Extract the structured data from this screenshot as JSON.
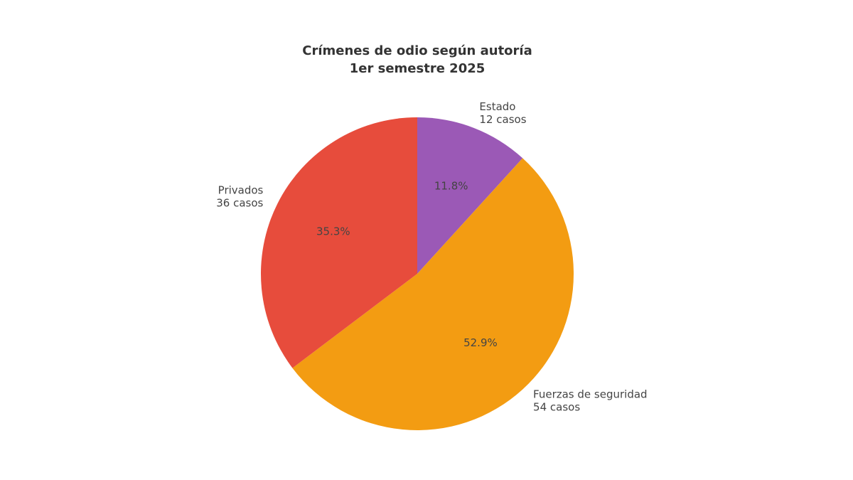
{
  "chart_data": {
    "type": "pie",
    "title": "Crímenes de odio según autoría",
    "subtitle": "1er semestre 2025",
    "categories": [
      "Estado",
      "Fuerzas de seguridad",
      "Privados"
    ],
    "values": [
      12,
      54,
      36
    ],
    "value_labels": [
      "12 casos",
      "54 casos",
      "36 casos"
    ],
    "percent_labels": [
      "11.8%",
      "52.9%",
      "35.3%"
    ],
    "colors": [
      "#9b59b6",
      "#f39c12",
      "#e74c3c"
    ],
    "start_angle": 90,
    "clockwise": true
  }
}
